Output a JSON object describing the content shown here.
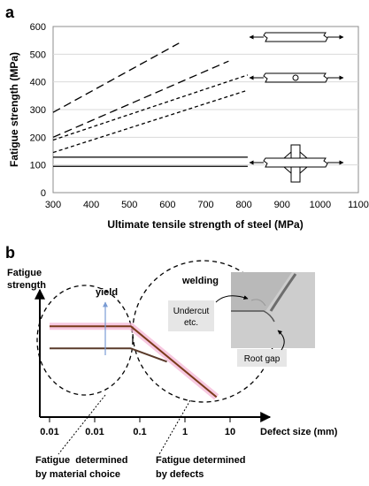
{
  "colors": {
    "axis": "#000000",
    "plot_border": "#8c8c8c",
    "grid": "#d9d9d9",
    "line_b_upper": "#7a3a1a",
    "line_b_lower": "#5a3a2a",
    "highlight": "#f4b6d6",
    "yield_arrow": "#7a9cd4",
    "photo_bg": "#b9b9b9"
  },
  "chart_data": [
    {
      "panel": "a",
      "type": "line",
      "xlabel": "Ultimate tensile strength of steel (MPa)",
      "ylabel": "Fatigue strength (MPa)",
      "xlim": [
        300,
        1100
      ],
      "ylim": [
        0,
        600
      ],
      "x_ticks": [
        "300",
        "400",
        "500",
        "600",
        "700",
        "800",
        "900",
        "1000",
        "1100"
      ],
      "y_ticks": [
        "0",
        "100",
        "200",
        "300",
        "400",
        "500",
        "600"
      ],
      "grid": "horizontal",
      "series": [
        {
          "style": "long-dash",
          "x": [
            300,
            630
          ],
          "y": [
            290,
            540
          ]
        },
        {
          "style": "long-dash",
          "x": [
            300,
            760
          ],
          "y": [
            200,
            475
          ]
        },
        {
          "style": "short-dash",
          "x": [
            300,
            810
          ],
          "y": [
            190,
            425
          ]
        },
        {
          "style": "short-dash",
          "x": [
            300,
            810
          ],
          "y": [
            145,
            370
          ]
        },
        {
          "style": "solid",
          "x": [
            300,
            810
          ],
          "y": [
            128,
            128
          ]
        },
        {
          "style": "solid",
          "x": [
            300,
            810
          ],
          "y": [
            95,
            95
          ]
        }
      ],
      "specimen_icons": [
        "plain-plate-specimen",
        "plate-with-hole-specimen",
        "cruciform-welded-specimen"
      ]
    },
    {
      "panel": "b",
      "type": "line",
      "xlabel": "Defect size (mm)",
      "ylabel": [
        "Fatigue",
        "strength"
      ],
      "x_ticks": [
        "0.01",
        "0.01",
        "0.1",
        "1",
        "10"
      ],
      "series": [
        {
          "name": "upper",
          "x_tick_position": [
            0,
            1.8,
            3.7
          ],
          "y_level": [
            0.82,
            0.82,
            0.18
          ]
        },
        {
          "name": "lower",
          "x_tick_position": [
            0,
            1.8,
            2.6
          ],
          "y_level": [
            0.62,
            0.62,
            0.5
          ]
        }
      ],
      "annotations": {
        "yield": "yield",
        "welding": "welding",
        "undercut": [
          "Undercut",
          "etc."
        ],
        "root_gap": "Root gap",
        "caption_left": [
          "Fatigue  determined",
          "by material choice"
        ],
        "caption_right": [
          "Fatigue determined",
          "by defects"
        ]
      }
    }
  ]
}
